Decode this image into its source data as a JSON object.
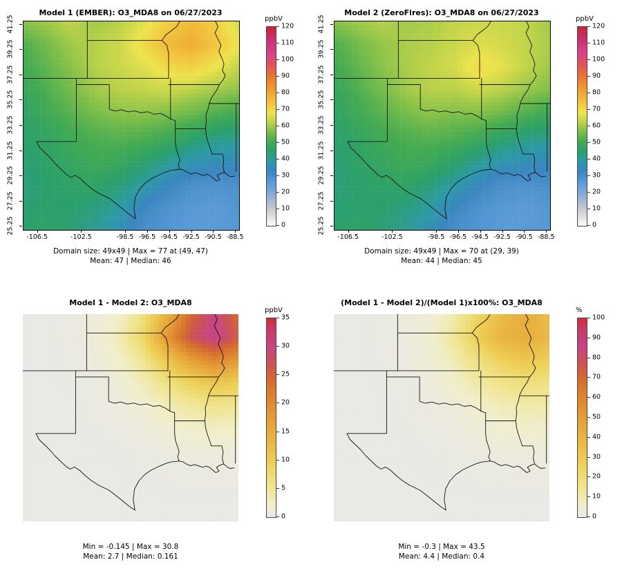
{
  "figure": {
    "background": "#ffffff"
  },
  "colormaps": {
    "conc": [
      [
        0,
        "#ffffff"
      ],
      [
        6,
        "#dcdcdc"
      ],
      [
        12,
        "#bcc3ce"
      ],
      [
        18,
        "#90aed6"
      ],
      [
        26,
        "#5b9bd8"
      ],
      [
        33,
        "#3a86c0"
      ],
      [
        39,
        "#2e9aa6"
      ],
      [
        45,
        "#2ba06b"
      ],
      [
        51,
        "#45ab52"
      ],
      [
        57,
        "#7fbf4a"
      ],
      [
        63,
        "#c2d44a"
      ],
      [
        68,
        "#eee44e"
      ],
      [
        74,
        "#f2c53e"
      ],
      [
        81,
        "#efa232"
      ],
      [
        89,
        "#e97c2e"
      ],
      [
        97,
        "#e2525a"
      ],
      [
        105,
        "#d83f8c"
      ],
      [
        113,
        "#c92f6e"
      ],
      [
        120,
        "#c92433"
      ]
    ],
    "diff": [
      [
        0,
        "#e9e9e5"
      ],
      [
        2,
        "#f1eecd"
      ],
      [
        5,
        "#f0e694"
      ],
      [
        9,
        "#edd35b"
      ],
      [
        13,
        "#eaba45"
      ],
      [
        17,
        "#e5a037"
      ],
      [
        21,
        "#dd8430"
      ],
      [
        24,
        "#d56c2e"
      ],
      [
        27,
        "#cd5452"
      ],
      [
        30,
        "#c64585"
      ],
      [
        33,
        "#c73a6a"
      ],
      [
        35,
        "#cf2b36"
      ]
    ],
    "pct": [
      [
        0,
        "#e9e9e5"
      ],
      [
        6,
        "#f1eecd"
      ],
      [
        14,
        "#f0e694"
      ],
      [
        26,
        "#edd35b"
      ],
      [
        37,
        "#eaba45"
      ],
      [
        49,
        "#e5a037"
      ],
      [
        60,
        "#dd8430"
      ],
      [
        69,
        "#d56c2e"
      ],
      [
        77,
        "#cd5452"
      ],
      [
        86,
        "#c64585"
      ],
      [
        94,
        "#c73a6a"
      ],
      [
        100,
        "#cf2b36"
      ]
    ]
  },
  "chart_data": [
    {
      "id": "model1-ember",
      "type": "heatmap",
      "title": "Model 1 (EMBER): O3_MDA8 on 06/27/2023",
      "colormap": "conc",
      "colorbar": {
        "label": "ppbV",
        "min": 0,
        "max": 120,
        "ticks": [
          0,
          10,
          20,
          30,
          40,
          50,
          60,
          70,
          80,
          90,
          100,
          110,
          120
        ]
      },
      "axes": {
        "lon_range": [
          -107.8,
          -88.2
        ],
        "lat_range": [
          25.0,
          41.5
        ],
        "x_ticks": [
          -106.5,
          -102.5,
          -98.5,
          -96.5,
          -94.5,
          -92.5,
          -90.5,
          -88.5
        ],
        "y_ticks": [
          41.25,
          39.25,
          37.25,
          35.25,
          33.25,
          31.25,
          29.25,
          27.25,
          25.25
        ]
      },
      "stats": [
        "Domain size: 49x49 | Max = 77 at (49, 47)",
        "Mean: 47 |  Median: 46"
      ],
      "grid": [
        [
          58,
          60,
          63,
          60,
          62,
          66,
          72,
          76,
          72,
          65
        ],
        [
          52,
          56,
          60,
          62,
          64,
          70,
          76,
          79,
          74,
          68
        ],
        [
          50,
          54,
          58,
          62,
          64,
          66,
          70,
          72,
          68,
          63
        ],
        [
          48,
          52,
          56,
          60,
          62,
          63,
          64,
          62,
          60,
          58
        ],
        [
          46,
          50,
          53,
          56,
          58,
          58,
          57,
          55,
          52,
          50
        ],
        [
          45,
          47,
          50,
          52,
          53,
          52,
          50,
          46,
          43,
          42
        ],
        [
          44,
          46,
          48,
          50,
          49,
          46,
          42,
          38,
          36,
          35
        ],
        [
          43,
          45,
          46,
          47,
          44,
          40,
          34,
          30,
          29,
          30
        ],
        [
          44,
          45,
          45,
          43,
          40,
          33,
          29,
          27,
          26,
          28
        ],
        [
          45,
          46,
          44,
          41,
          36,
          30,
          28,
          26,
          26,
          27
        ]
      ]
    },
    {
      "id": "model2-zerofires",
      "type": "heatmap",
      "title": "Model 2 (ZeroFires): O3_MDA8 on 06/27/2023",
      "colormap": "conc",
      "colorbar": {
        "label": "ppbV",
        "min": 0,
        "max": 120,
        "ticks": [
          0,
          10,
          20,
          30,
          40,
          50,
          60,
          70,
          80,
          90,
          100,
          110,
          120
        ]
      },
      "axes": {
        "lon_range": [
          -107.8,
          -88.2
        ],
        "lat_range": [
          25.0,
          41.5
        ],
        "x_ticks": [
          -106.5,
          -102.5,
          -98.5,
          -96.5,
          -94.5,
          -92.5,
          -90.5,
          -88.5
        ],
        "y_ticks": [
          41.25,
          39.25,
          37.25,
          35.25,
          33.25,
          31.25,
          29.25,
          27.25,
          25.25
        ]
      },
      "stats": [
        "Domain size: 49x49 | Max = 70 at (29, 39)",
        "Mean: 44 |  Median: 45"
      ],
      "grid": [
        [
          58,
          60,
          62,
          60,
          61,
          63,
          64,
          64,
          63,
          60
        ],
        [
          52,
          56,
          59,
          61,
          62,
          64,
          66,
          65,
          63,
          61
        ],
        [
          50,
          54,
          58,
          61,
          63,
          65,
          70,
          67,
          63,
          60
        ],
        [
          48,
          52,
          56,
          60,
          62,
          62,
          64,
          62,
          59,
          57
        ],
        [
          46,
          50,
          53,
          56,
          58,
          57,
          57,
          55,
          52,
          49
        ],
        [
          45,
          47,
          50,
          52,
          53,
          52,
          50,
          46,
          43,
          42
        ],
        [
          44,
          46,
          48,
          50,
          49,
          46,
          42,
          38,
          36,
          35
        ],
        [
          43,
          45,
          46,
          47,
          44,
          40,
          34,
          30,
          29,
          30
        ],
        [
          44,
          45,
          45,
          43,
          40,
          33,
          29,
          27,
          26,
          28
        ],
        [
          45,
          46,
          44,
          41,
          36,
          30,
          28,
          26,
          26,
          27
        ]
      ]
    },
    {
      "id": "difference",
      "type": "heatmap",
      "title": "Model 1 - Model 2: O3_MDA8",
      "colormap": "diff",
      "colorbar": {
        "label": "ppbV",
        "min": 0,
        "max": 35,
        "ticks": [
          0,
          5,
          10,
          15,
          20,
          25,
          30,
          35
        ]
      },
      "stats": [
        "Min = -0.145 | Max = 30.8",
        "Mean: 2.7 |  Median: 0.161"
      ],
      "grid": [
        [
          0,
          0,
          0.3,
          1,
          2,
          6,
          14,
          24,
          30,
          24
        ],
        [
          0,
          0,
          0.3,
          1,
          3,
          8,
          18,
          27,
          31,
          26
        ],
        [
          0,
          0,
          0.2,
          0.8,
          2,
          5,
          11,
          17,
          21,
          18
        ],
        [
          0,
          0,
          0.1,
          0.5,
          1.2,
          3,
          6,
          9,
          11,
          10
        ],
        [
          0,
          0,
          0,
          0.3,
          0.7,
          1.5,
          3,
          4.5,
          5.5,
          5
        ],
        [
          0,
          0,
          0,
          0.1,
          0.3,
          0.7,
          1.3,
          2,
          2.5,
          2.2
        ],
        [
          0,
          0,
          0,
          0,
          0.1,
          0.3,
          0.5,
          0.8,
          1,
          0.9
        ],
        [
          0,
          0,
          0,
          0,
          0,
          0.1,
          0.2,
          0.3,
          0.4,
          0.4
        ],
        [
          0,
          0,
          0,
          0,
          0,
          0,
          0,
          0,
          0,
          0
        ],
        [
          0,
          0,
          0,
          0,
          0,
          0,
          0,
          0,
          0,
          0
        ]
      ]
    },
    {
      "id": "percent-difference",
      "type": "heatmap",
      "title": "(Model 1 - Model 2)/(Model 1)x100%: O3_MDA8",
      "colormap": "pct",
      "colorbar": {
        "label": "%",
        "min": 0,
        "max": 100,
        "ticks": [
          0,
          10,
          20,
          30,
          40,
          50,
          60,
          70,
          80,
          90,
          100
        ]
      },
      "stats": [
        "Min = -0.3 | Max = 43.5",
        "Mean: 4.4 |  Median: 0.4"
      ],
      "grid": [
        [
          0,
          0,
          0.5,
          2,
          4,
          10,
          24,
          36,
          43,
          36
        ],
        [
          0,
          0,
          0.5,
          2,
          5,
          13,
          28,
          40,
          43,
          38
        ],
        [
          0,
          0,
          0.4,
          1.5,
          4,
          9,
          18,
          27,
          32,
          28
        ],
        [
          0,
          0,
          0.2,
          1,
          2.5,
          6,
          11,
          16,
          19,
          17
        ],
        [
          0,
          0,
          0.1,
          0.6,
          1.5,
          3,
          6,
          9,
          11,
          10
        ],
        [
          0,
          0,
          0,
          0.3,
          0.8,
          1.6,
          3,
          5,
          6,
          5.5
        ],
        [
          0,
          0,
          0,
          0.1,
          0.4,
          0.8,
          1.5,
          2.5,
          3,
          2.8
        ],
        [
          0,
          0,
          0,
          0,
          0.2,
          0.4,
          0.7,
          1,
          1.3,
          1.2
        ],
        [
          0,
          0,
          0,
          0,
          0,
          0,
          0,
          0,
          0,
          0
        ],
        [
          0,
          0,
          0,
          0,
          0,
          0,
          0,
          0,
          0,
          0
        ]
      ]
    }
  ]
}
